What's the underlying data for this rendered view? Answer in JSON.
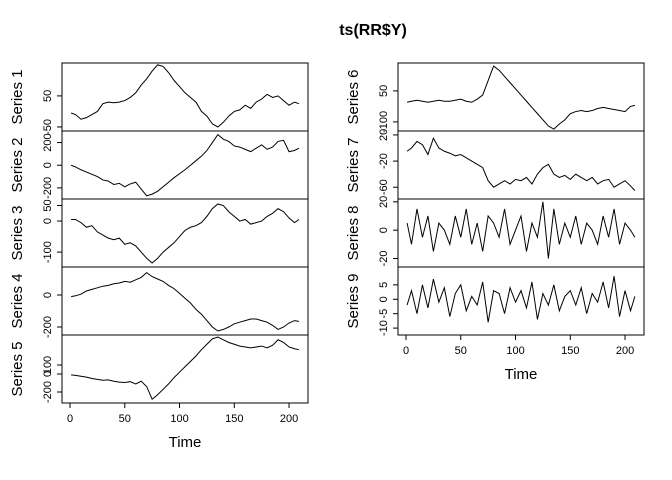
{
  "chart_data": {
    "type": "line",
    "title": "ts(RR$Y)",
    "xlabel": "Time",
    "x": [
      1,
      5,
      10,
      15,
      20,
      25,
      30,
      35,
      40,
      45,
      50,
      55,
      60,
      65,
      70,
      75,
      80,
      85,
      90,
      95,
      100,
      105,
      110,
      115,
      120,
      125,
      130,
      135,
      140,
      145,
      150,
      155,
      160,
      165,
      170,
      175,
      180,
      185,
      190,
      195,
      200,
      205,
      209
    ],
    "xlim": [
      -7.32,
      217.32
    ],
    "xticks": [
      0,
      50,
      100,
      150,
      200
    ],
    "series": [
      {
        "name": "Series 1",
        "color": "#000000",
        "ylim": [
          -63,
          156
        ],
        "yticks": [
          -50,
          50
        ],
        "values": [
          -5,
          -10,
          -25,
          -20,
          -10,
          0,
          25,
          30,
          28,
          30,
          35,
          45,
          60,
          85,
          105,
          130,
          150,
          145,
          125,
          100,
          80,
          60,
          45,
          30,
          0,
          -15,
          -40,
          -50,
          -35,
          -15,
          0,
          5,
          20,
          10,
          30,
          40,
          55,
          45,
          50,
          35,
          20,
          30,
          25
        ]
      },
      {
        "name": "Series 2",
        "color": "#000000",
        "ylim": [
          -298,
          302
        ],
        "yticks": [
          -200,
          0,
          200
        ],
        "values": [
          0,
          -15,
          -40,
          -60,
          -80,
          -100,
          -130,
          -140,
          -170,
          -160,
          -190,
          -165,
          -150,
          -210,
          -270,
          -255,
          -230,
          -190,
          -150,
          -110,
          -75,
          -40,
          0,
          40,
          80,
          130,
          200,
          270,
          230,
          210,
          170,
          160,
          140,
          120,
          150,
          180,
          140,
          160,
          210,
          220,
          120,
          130,
          150
        ]
      },
      {
        "name": "Series 3",
        "color": "#000000",
        "ylim": [
          -148,
          71
        ],
        "yticks": [
          -100,
          0,
          50
        ],
        "values": [
          5,
          5,
          -5,
          -20,
          -15,
          -35,
          -45,
          -55,
          -60,
          -55,
          -75,
          -70,
          -80,
          -100,
          -120,
          -135,
          -120,
          -100,
          -85,
          -70,
          -50,
          -30,
          -20,
          -15,
          -5,
          15,
          40,
          55,
          50,
          30,
          15,
          0,
          5,
          -10,
          -5,
          0,
          15,
          25,
          40,
          30,
          10,
          -5,
          5
        ]
      },
      {
        "name": "Series 4",
        "color": "#000000",
        "ylim": [
          -250,
          175
        ],
        "yticks": [
          -200,
          0
        ],
        "values": [
          -10,
          -5,
          5,
          25,
          35,
          45,
          55,
          60,
          70,
          75,
          85,
          80,
          95,
          110,
          140,
          115,
          100,
          85,
          60,
          40,
          10,
          -20,
          -50,
          -90,
          -120,
          -160,
          -200,
          -225,
          -215,
          -200,
          -180,
          -170,
          -160,
          -150,
          -150,
          -160,
          -170,
          -190,
          -215,
          -200,
          -175,
          -160,
          -165
        ]
      },
      {
        "name": "Series 5",
        "color": "#000000",
        "ylim": [
          -322,
          433
        ],
        "yticks": [
          -200,
          0,
          100
        ],
        "values": [
          -10,
          -15,
          -25,
          -35,
          -50,
          -60,
          -70,
          -65,
          -80,
          -90,
          -95,
          -85,
          -110,
          -80,
          -140,
          -280,
          -230,
          -170,
          -110,
          -40,
          20,
          80,
          140,
          200,
          270,
          330,
          390,
          410,
          380,
          350,
          330,
          310,
          300,
          290,
          300,
          310,
          290,
          320,
          380,
          350,
          300,
          280,
          270
        ]
      },
      {
        "name": "Series 6",
        "color": "#000000",
        "ylim": [
          -144,
          185
        ],
        "yticks": [
          -100,
          50
        ],
        "values": [
          -5,
          0,
          5,
          0,
          -5,
          0,
          5,
          0,
          0,
          5,
          10,
          0,
          -5,
          10,
          30,
          100,
          170,
          150,
          120,
          90,
          60,
          30,
          0,
          -30,
          -60,
          -90,
          -120,
          -135,
          -110,
          -90,
          -60,
          -50,
          -45,
          -50,
          -45,
          -35,
          -30,
          -35,
          -40,
          -45,
          -50,
          -25,
          -20
        ]
      },
      {
        "name": "Series 7",
        "color": "#000000",
        "ylim": [
          -78,
          26
        ],
        "yticks": [
          -60,
          -20,
          20
        ],
        "values": [
          -5,
          0,
          10,
          5,
          -10,
          15,
          0,
          -5,
          -8,
          -12,
          -10,
          -15,
          -20,
          -25,
          -30,
          -50,
          -60,
          -55,
          -50,
          -55,
          -48,
          -50,
          -45,
          -55,
          -40,
          -30,
          -25,
          -40,
          -45,
          -42,
          -48,
          -40,
          -45,
          -50,
          -45,
          -55,
          -50,
          -48,
          -60,
          -55,
          -50,
          -58,
          -65
        ]
      },
      {
        "name": "Series 8",
        "color": "#000000",
        "ylim": [
          -26,
          22
        ],
        "yticks": [
          -20,
          0,
          20
        ],
        "values": [
          5,
          -10,
          15,
          -5,
          10,
          -15,
          5,
          0,
          -10,
          10,
          -5,
          15,
          -10,
          5,
          -15,
          10,
          5,
          -5,
          15,
          -10,
          0,
          10,
          -15,
          5,
          -5,
          20,
          -20,
          15,
          -10,
          5,
          -5,
          10,
          -10,
          5,
          0,
          -10,
          10,
          -5,
          15,
          -10,
          5,
          0,
          -5
        ]
      },
      {
        "name": "Series 9",
        "color": "#000000",
        "ylim": [
          -12.4,
          11.2
        ],
        "yticks": [
          -10,
          -5,
          0,
          5
        ],
        "values": [
          -2,
          3,
          -5,
          5,
          -3,
          7,
          -1,
          4,
          -6,
          2,
          5,
          -4,
          1,
          -2,
          6,
          -8,
          3,
          2,
          -5,
          4,
          -1,
          3,
          -3,
          6,
          -7,
          2,
          -2,
          5,
          -4,
          1,
          3,
          -2,
          4,
          -5,
          2,
          -1,
          6,
          -3,
          8,
          -6,
          3,
          -4,
          1
        ]
      }
    ]
  }
}
